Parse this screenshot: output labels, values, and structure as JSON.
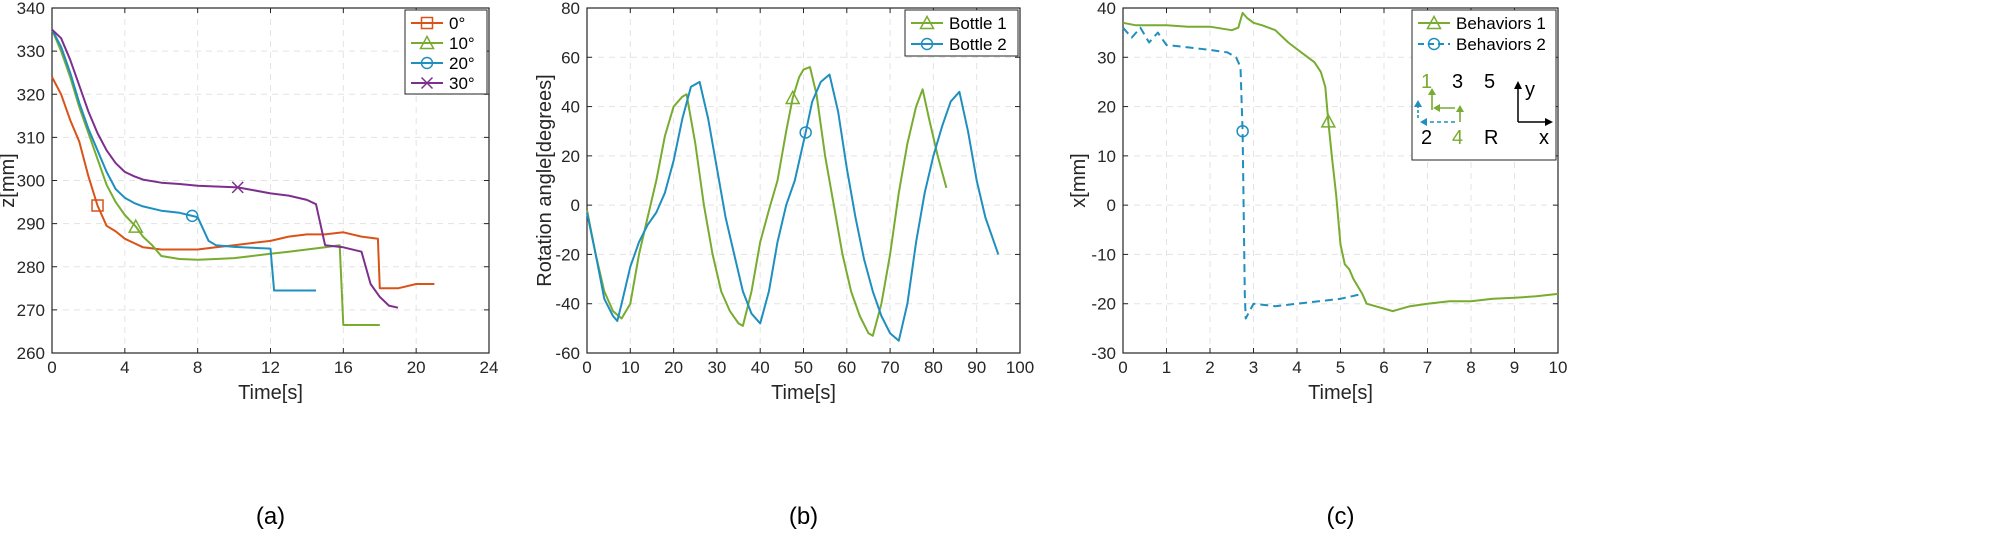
{
  "colors": {
    "orange": "#d95319",
    "green": "#77ac30",
    "blue": "#1f8fbf",
    "purple": "#7e2f8e"
  },
  "charts": [
    {
      "chart_data": {
        "type": "line",
        "caption": "(a)",
        "xlabel": "Time[s]",
        "ylabel": "z[mm]",
        "xlim": [
          0,
          24
        ],
        "ylim": [
          260,
          340
        ],
        "xticks": [
          0,
          4,
          8,
          12,
          16,
          20,
          24
        ],
        "yticks": [
          260,
          270,
          280,
          290,
          300,
          310,
          320,
          330,
          340
        ],
        "grid": true,
        "legend_position": "top-right",
        "series": [
          {
            "name": "0°",
            "color": "#d95319",
            "marker": "square",
            "marker_at": [
              2.5,
              294.2
            ],
            "x": [
              0,
              0.5,
              1,
              1.5,
              2,
              2.5,
              3,
              3.5,
              4,
              4.5,
              5,
              6,
              7,
              8,
              9,
              10,
              11,
              12,
              13,
              14,
              15,
              16,
              17,
              17.9,
              18,
              18.5,
              19,
              20,
              21
            ],
            "y": [
              324,
              320,
              314,
              309,
              301,
              294.2,
              289.5,
              288.2,
              286.5,
              285.5,
              284.5,
              284,
              284,
              284,
              284.5,
              285,
              285.5,
              286,
              287,
              287.5,
              287.5,
              288,
              287,
              286.5,
              275,
              275,
              275,
              276,
              276
            ]
          },
          {
            "name": "10°",
            "color": "#77ac30",
            "marker": "triangle",
            "marker_at": [
              4.6,
              289.3
            ],
            "x": [
              0,
              0.5,
              1,
              1.5,
              2,
              2.5,
              3,
              3.5,
              4,
              4.6,
              5,
              5.5,
              6,
              7,
              8,
              9,
              10,
              11,
              12,
              13,
              14,
              15,
              15.8,
              16,
              17,
              18
            ],
            "y": [
              335,
              330,
              324,
              317,
              311,
              305,
              299,
              295,
              292,
              289.3,
              287,
              285,
              282.5,
              281.8,
              281.6,
              281.8,
              282,
              282.5,
              283,
              283.5,
              284,
              284.5,
              285,
              266.5,
              266.5,
              266.5
            ]
          },
          {
            "name": "20°",
            "color": "#1f8fbf",
            "marker": "circle",
            "marker_at": [
              7.7,
              291.8
            ],
            "x": [
              0,
              0.5,
              1,
              1.5,
              2,
              2.5,
              3,
              3.5,
              4,
              4.5,
              5,
              6,
              7,
              7.7,
              8,
              8.6,
              9,
              10,
              11,
              12,
              12.2,
              13,
              14,
              14.5
            ],
            "y": [
              335,
              331,
              325,
              318,
              312,
              307,
              302,
              298,
              296,
              294.8,
              294,
              293,
              292.5,
              291.8,
              291.5,
              286,
              285,
              284.6,
              284.4,
              284.2,
              274.5,
              274.5,
              274.5,
              274.5
            ]
          },
          {
            "name": "30°",
            "color": "#7e2f8e",
            "marker": "x",
            "marker_at": [
              10.2,
              298.4
            ],
            "x": [
              0,
              0.5,
              1,
              1.5,
              2,
              2.5,
              3,
              3.5,
              4,
              4.5,
              5,
              6,
              7,
              8,
              9,
              10.2,
              11,
              12,
              13,
              14,
              14.5,
              15,
              16,
              17,
              17.5,
              18,
              18.5,
              19
            ],
            "y": [
              335,
              333,
              328,
              322,
              316,
              311,
              307,
              304,
              302,
              301,
              300.2,
              299.5,
              299.2,
              298.8,
              298.6,
              298.4,
              297.8,
              297,
              296.5,
              295.5,
              294.5,
              285,
              284.5,
              283.5,
              276,
              273,
              271,
              270.5
            ]
          }
        ]
      }
    },
    {
      "chart_data": {
        "type": "line",
        "caption": "(b)",
        "xlabel": "Time[s]",
        "ylabel": "Rotation angle[degrees]",
        "xlim": [
          0,
          100
        ],
        "ylim": [
          -60,
          80
        ],
        "xticks": [
          0,
          10,
          20,
          30,
          40,
          50,
          60,
          70,
          80,
          90,
          100
        ],
        "yticks": [
          -60,
          -40,
          -20,
          0,
          20,
          40,
          60,
          80
        ],
        "grid": true,
        "legend_position": "top-right",
        "series": [
          {
            "name": "Bottle 1",
            "color": "#77ac30",
            "marker": "triangle",
            "marker_at": [
              47.5,
              43.5
            ],
            "x": [
              0,
              2,
              4,
              6,
              8,
              10,
              12,
              14,
              16,
              18,
              20,
              22,
              23,
              25,
              27,
              29,
              31,
              33,
              35,
              36,
              38,
              40,
              42,
              44,
              46,
              47.5,
              49,
              50,
              51.5,
              53,
              55,
              57,
              59,
              61,
              63,
              65,
              66,
              68,
              70,
              72,
              74,
              76,
              77.5,
              79,
              81,
              83
            ],
            "y": [
              -2,
              -20,
              -35,
              -43,
              -46,
              -40,
              -20,
              -5,
              10,
              28,
              40,
              44,
              45,
              25,
              0,
              -20,
              -35,
              -43,
              -48,
              -49,
              -35,
              -15,
              -2,
              10,
              30,
              43.5,
              52,
              55,
              56,
              45,
              20,
              0,
              -20,
              -35,
              -45,
              -52,
              -53,
              -40,
              -20,
              5,
              25,
              40,
              47,
              35,
              20,
              7
            ]
          },
          {
            "name": "Bottle 2",
            "color": "#1f8fbf",
            "marker": "circle",
            "marker_at": [
              50.5,
              29.5
            ],
            "x": [
              0,
              2,
              4,
              6,
              7,
              8,
              10,
              12,
              14,
              16,
              18,
              20,
              22,
              24,
              26,
              28,
              30,
              32,
              34,
              36,
              38,
              40,
              42,
              44,
              46,
              48,
              50.5,
              52,
              54,
              56,
              58,
              60,
              62,
              64,
              66,
              68,
              70,
              72,
              74,
              76,
              78,
              80,
              82,
              84,
              86,
              88,
              90,
              92,
              94,
              95
            ],
            "y": [
              -3,
              -20,
              -38,
              -45,
              -47,
              -40,
              -25,
              -15,
              -8,
              -3,
              5,
              18,
              35,
              48,
              50,
              35,
              15,
              -5,
              -20,
              -35,
              -44,
              -48,
              -35,
              -15,
              0,
              10,
              29.5,
              42,
              50,
              53,
              38,
              15,
              -5,
              -22,
              -35,
              -45,
              -52,
              -55,
              -40,
              -15,
              5,
              20,
              32,
              42,
              46,
              30,
              10,
              -5,
              -15,
              -20
            ]
          }
        ]
      }
    },
    {
      "chart_data": {
        "type": "line",
        "caption": "(c)",
        "xlabel": "Time[s]",
        "ylabel": "x[mm]",
        "xlim": [
          0,
          10
        ],
        "ylim": [
          -30,
          40
        ],
        "xticks": [
          0,
          1,
          2,
          3,
          4,
          5,
          6,
          7,
          8,
          9,
          10
        ],
        "yticks": [
          -30,
          -20,
          -10,
          0,
          10,
          20,
          30,
          40
        ],
        "grid": true,
        "legend_position": "top-right",
        "inset_labels": {
          "n1": "1",
          "n2": "2",
          "n3": "3",
          "n4": "4",
          "n5": "5",
          "r": "R",
          "axis_y": "y",
          "axis_x": "x"
        },
        "series": [
          {
            "name": "Behaviors 1",
            "color": "#77ac30",
            "marker": "triangle",
            "dash": false,
            "marker_at": [
              4.72,
              17
            ],
            "x": [
              0,
              0.3,
              0.6,
              1,
              1.5,
              2,
              2.5,
              2.65,
              2.75,
              2.85,
              3,
              3.2,
              3.5,
              3.8,
              4.1,
              4.4,
              4.55,
              4.65,
              4.72,
              4.8,
              4.9,
              5,
              5.1,
              5.2,
              5.3,
              5.5,
              5.6,
              5.8,
              6.2,
              6.6,
              7,
              7.5,
              8,
              8.5,
              9,
              9.5,
              10
            ],
            "y": [
              37,
              36.5,
              36.5,
              36.5,
              36.2,
              36.2,
              35.5,
              36,
              39,
              38,
              37,
              36.5,
              35.5,
              33,
              31,
              29,
              27,
              24,
              17,
              10,
              2,
              -8,
              -12,
              -13,
              -15,
              -18,
              -20,
              -20.5,
              -21.5,
              -20.5,
              -20,
              -19.5,
              -19.5,
              -19,
              -18.8,
              -18.5,
              -18
            ]
          },
          {
            "name": "Behaviors 2",
            "color": "#1f8fbf",
            "marker": "circle",
            "dash": true,
            "marker_at": [
              2.75,
              15
            ],
            "x": [
              0,
              0.2,
              0.4,
              0.6,
              0.8,
              1,
              1.5,
              2,
              2.4,
              2.6,
              2.7,
              2.75,
              2.8,
              2.82,
              3,
              3.5,
              4,
              4.5,
              5,
              5.5
            ],
            "y": [
              36,
              34,
              36,
              33,
              35,
              32.5,
              32,
              31.5,
              31,
              30,
              28,
              15,
              -18,
              -23,
              -20,
              -20.5,
              -20,
              -19.5,
              -19,
              -18
            ]
          }
        ]
      }
    }
  ]
}
